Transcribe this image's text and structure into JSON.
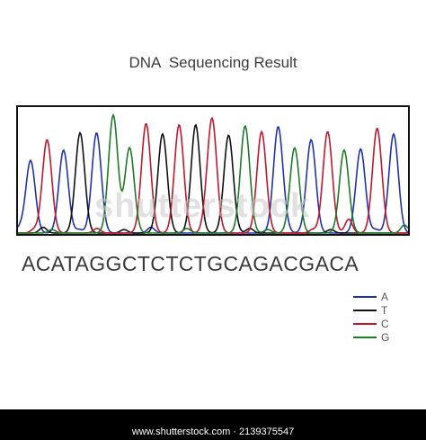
{
  "title": "DNA  Sequencing Result",
  "sequence": "ACATAGGCTCTCTGCAGACGACA",
  "colors": {
    "A": "#2233aa",
    "T": "#111111",
    "C": "#c0182c",
    "G": "#1f7a2a"
  },
  "legend": [
    {
      "base": "A",
      "label": "A"
    },
    {
      "base": "T",
      "label": "T"
    },
    {
      "base": "C",
      "label": "C"
    },
    {
      "base": "G",
      "label": "G"
    }
  ],
  "chart_data": {
    "type": "line",
    "x": [
      1,
      2,
      3,
      4,
      5,
      6,
      7,
      8,
      9,
      10,
      11,
      12,
      13,
      14,
      15,
      16,
      17,
      18,
      19,
      20,
      21,
      22,
      23
    ],
    "bases": [
      "A",
      "C",
      "A",
      "T",
      "A",
      "G",
      "G",
      "C",
      "T",
      "C",
      "T",
      "C",
      "T",
      "G",
      "C",
      "A",
      "G",
      "A",
      "C",
      "G",
      "A",
      "C",
      "A"
    ],
    "peak_heights": [
      0.63,
      0.81,
      0.72,
      0.87,
      0.87,
      0.98,
      0.74,
      0.95,
      0.86,
      0.94,
      0.82,
      0.99,
      0.85,
      0.93,
      0.88,
      0.92,
      0.74,
      0.81,
      0.88,
      0.72,
      0.73,
      0.91,
      0.86
    ],
    "xlabel": "",
    "ylabel": "",
    "grid": false
  },
  "watermark": "shutterstock",
  "footer": "www.shutterstock.com · 2139375547"
}
